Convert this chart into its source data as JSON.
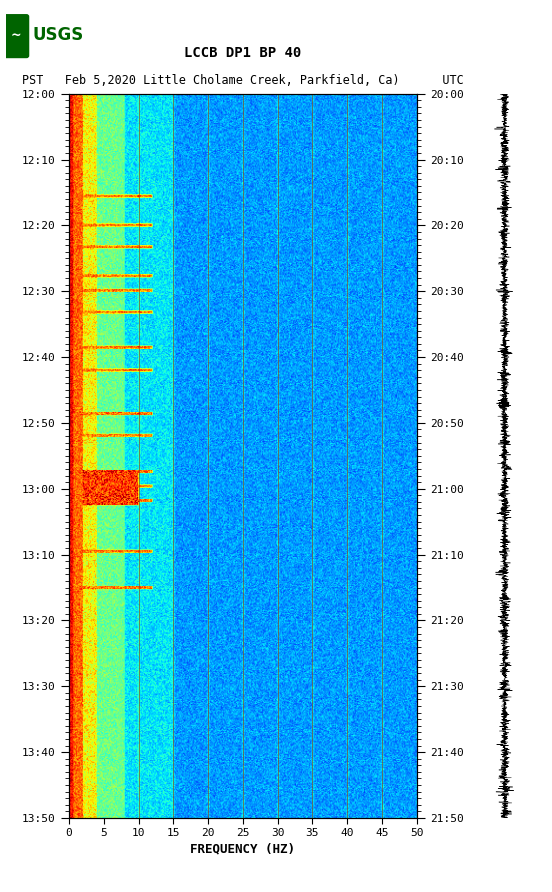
{
  "title_line1": "LCCB DP1 BP 40",
  "title_line2": "PST   Feb 5,2020 Little Cholame Creek, Parkfield, Ca)      UTC",
  "xlabel": "FREQUENCY (HZ)",
  "xlim": [
    0,
    50
  ],
  "x_ticks": [
    0,
    5,
    10,
    15,
    20,
    25,
    30,
    35,
    40,
    45,
    50
  ],
  "freq_lines": [
    10,
    15,
    20,
    25,
    30,
    35,
    40,
    45
  ],
  "left_time_labels": [
    "12:00",
    "12:10",
    "12:20",
    "12:30",
    "12:40",
    "12:50",
    "13:00",
    "13:10",
    "13:20",
    "13:30",
    "13:40",
    "13:50"
  ],
  "right_time_labels": [
    "20:00",
    "20:10",
    "20:20",
    "20:30",
    "20:40",
    "20:50",
    "21:00",
    "21:10",
    "21:20",
    "21:30",
    "21:40",
    "21:50"
  ],
  "background_color": "#ffffff",
  "usgs_logo_color": "#006400",
  "waveform_color": "#000000",
  "freq_line_color": "#8B4513",
  "colormap": "jet",
  "noise_seed": 42,
  "fig_width": 5.52,
  "fig_height": 8.92,
  "dpi": 100
}
